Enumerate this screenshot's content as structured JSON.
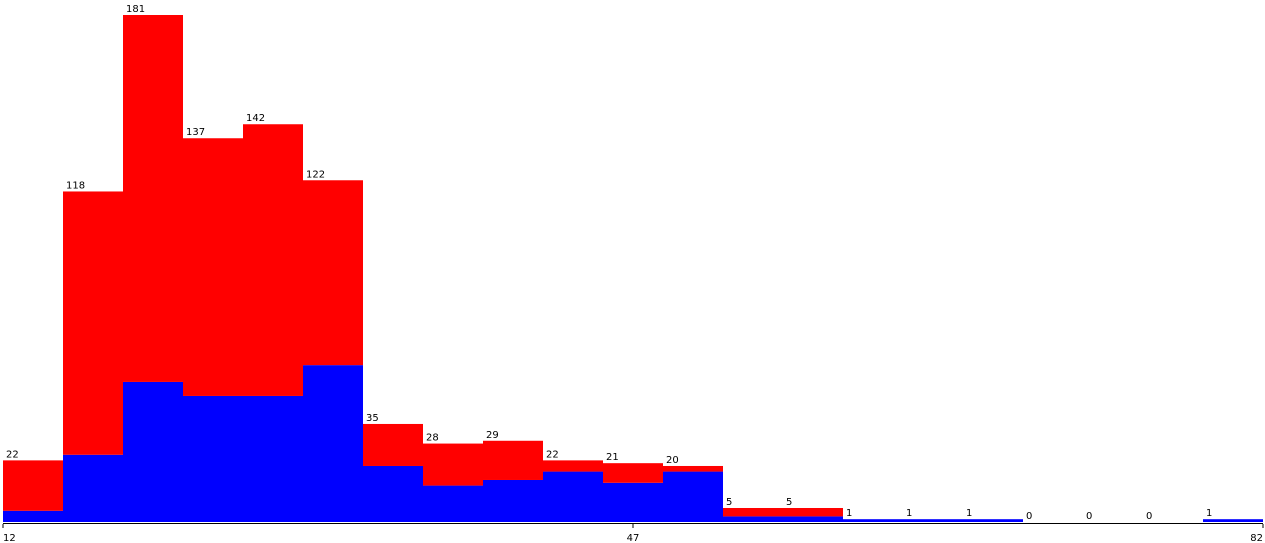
{
  "chart_data": {
    "type": "histogram",
    "totals": [
      22,
      118,
      181,
      137,
      142,
      122,
      35,
      28,
      29,
      22,
      21,
      20,
      5,
      5,
      1,
      1,
      1,
      0,
      0,
      0,
      1
    ],
    "series": [
      {
        "color": "#0000ff",
        "values": [
          4,
          24,
          50,
          45,
          45,
          56,
          20,
          13,
          15,
          18,
          14,
          18,
          2,
          2,
          1,
          1,
          1,
          0,
          0,
          0,
          1
        ]
      },
      {
        "color": "#ff0000",
        "values": [
          18,
          94,
          131,
          92,
          97,
          66,
          15,
          15,
          14,
          4,
          7,
          2,
          3,
          3,
          0,
          0,
          0,
          0,
          0,
          0,
          0
        ]
      }
    ],
    "xlim": [
      12,
      82
    ],
    "xticks": [
      12,
      47,
      82
    ],
    "ylim": [
      0,
      181
    ]
  }
}
